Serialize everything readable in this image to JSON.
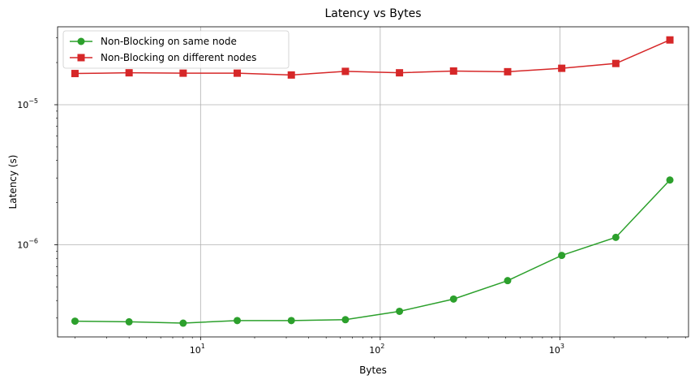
{
  "chart_data": {
    "type": "line",
    "title": "Latency vs Bytes",
    "xlabel": "Bytes",
    "ylabel": "Latency (s)",
    "xscale": "log",
    "yscale": "log",
    "xlim": [
      1.6,
      5200
    ],
    "ylim": [
      2.2e-07,
      3.6e-05
    ],
    "grid": true,
    "legend_position": "top-left",
    "x_ticks": [
      {
        "value": 10,
        "label": "10",
        "exp": "1"
      },
      {
        "value": 100,
        "label": "10",
        "exp": "2"
      },
      {
        "value": 1000,
        "label": "10",
        "exp": "3"
      }
    ],
    "y_ticks": [
      {
        "value": 1e-06,
        "label": "10",
        "exp": "−6"
      },
      {
        "value": 1e-05,
        "label": "10",
        "exp": "−5"
      }
    ],
    "x": [
      2,
      4,
      8,
      16,
      32,
      64,
      128,
      256,
      512,
      1024,
      2048,
      4096
    ],
    "series": [
      {
        "name": "Non-Blocking on same node",
        "color": "#2ca02c",
        "marker": "circle",
        "values": [
          2.85e-07,
          2.82e-07,
          2.76e-07,
          2.88e-07,
          2.88e-07,
          2.92e-07,
          3.35e-07,
          4.1e-07,
          5.55e-07,
          8.4e-07,
          1.13e-06,
          2.9e-06
        ]
      },
      {
        "name": "Non-Blocking on different nodes",
        "color": "#d62728",
        "marker": "square",
        "values": [
          1.67e-05,
          1.69e-05,
          1.68e-05,
          1.68e-05,
          1.63e-05,
          1.73e-05,
          1.69e-05,
          1.74e-05,
          1.72e-05,
          1.82e-05,
          1.97e-05,
          2.9e-05
        ]
      }
    ]
  }
}
